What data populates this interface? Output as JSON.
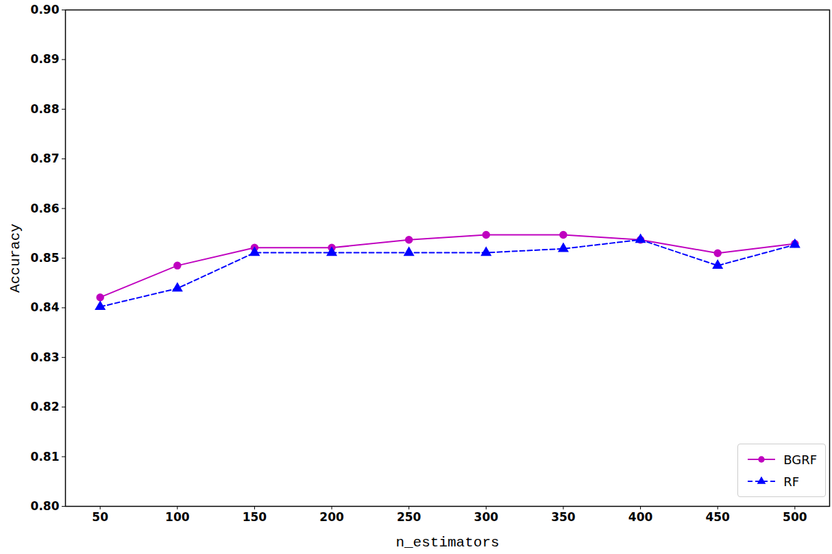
{
  "chart_data": {
    "type": "line",
    "x_label": "n_estimators",
    "y_label": "Accuracy",
    "x": [
      50,
      100,
      150,
      200,
      250,
      300,
      350,
      400,
      450,
      500
    ],
    "series": [
      {
        "name": "BGRF",
        "color": "#bf00bf",
        "marker": "circle",
        "line_style": "solid",
        "values": [
          0.8421,
          0.8485,
          0.8521,
          0.8521,
          0.8537,
          0.8547,
          0.8547,
          0.8537,
          0.851,
          0.8529
        ]
      },
      {
        "name": "RF",
        "color": "#0000ff",
        "marker": "triangle",
        "line_style": "dashed",
        "values": [
          0.8402,
          0.8439,
          0.8511,
          0.8511,
          0.8511,
          0.8511,
          0.8519,
          0.8537,
          0.8485,
          0.8527
        ]
      }
    ],
    "xlim": [
      27.5,
      522.5
    ],
    "xticks": [
      50,
      100,
      150,
      200,
      250,
      300,
      350,
      400,
      450,
      500
    ],
    "ylim": [
      0.8,
      0.9
    ],
    "yticks": [
      {
        "value": 0.8,
        "label": "0.80"
      },
      0.81,
      0.82,
      0.83,
      0.84,
      0.85,
      0.86,
      0.87,
      0.88,
      0.89,
      {
        "value": 0.9,
        "label": "0.90"
      }
    ],
    "legend": "lower right",
    "grid": false
  }
}
